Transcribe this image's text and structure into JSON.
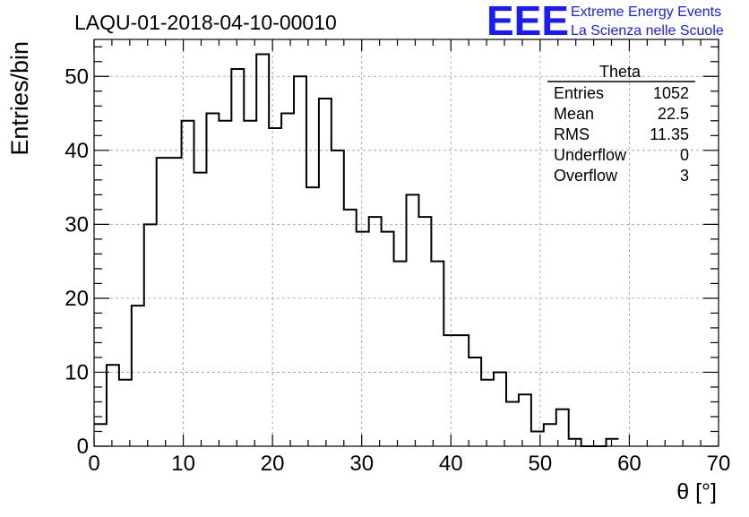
{
  "title": "LAQU-01-2018-04-10-00010",
  "logo": {
    "mark": "EEE",
    "line1": "Extreme Energy Events",
    "line2": "La Scienza nelle Scuole",
    "color": "#1a1aff"
  },
  "stats_box": {
    "title": "Theta",
    "rows": [
      {
        "label": "Entries",
        "value": "1052"
      },
      {
        "label": "Mean",
        "value": "22.5"
      },
      {
        "label": "RMS",
        "value": "11.35"
      },
      {
        "label": "Underflow",
        "value": "0"
      },
      {
        "label": "Overflow",
        "value": "3"
      }
    ]
  },
  "chart_data": {
    "type": "bar",
    "histogram": true,
    "title": "LAQU-01-2018-04-10-00010",
    "xlabel": "θ [°]",
    "ylabel": "Entries/bin",
    "xlim": [
      0,
      70
    ],
    "ylim": [
      0,
      55
    ],
    "grid": true,
    "x_ticks": [
      0,
      10,
      20,
      30,
      40,
      50,
      60,
      70
    ],
    "y_ticks": [
      0,
      10,
      20,
      30,
      40,
      50
    ],
    "bin_edges": [
      0,
      1.4,
      2.8,
      4.2,
      5.6,
      7,
      8.4,
      9.8,
      11.2,
      12.6,
      14,
      15.4,
      16.8,
      18.2,
      19.6,
      21,
      22.4,
      23.8,
      25.2,
      26.6,
      28,
      29.4,
      30.8,
      32.2,
      33.6,
      35,
      36.4,
      37.8,
      39.2,
      40.6,
      42,
      43.4,
      44.8,
      46.2,
      47.6,
      49,
      50.4,
      51.8,
      53.2,
      54.6,
      56,
      57.4,
      58.8
    ],
    "values": [
      3,
      11,
      9,
      19,
      30,
      39,
      39,
      44,
      37,
      45,
      44,
      51,
      44,
      53,
      43,
      45,
      50,
      35,
      47,
      40,
      32,
      29,
      31,
      29,
      25,
      34,
      31,
      25,
      15,
      15,
      12,
      9,
      10,
      6,
      7,
      2,
      3,
      5,
      1,
      0,
      0,
      1
    ],
    "line_color": "#000000",
    "grid_color": "#9a9a9a"
  }
}
